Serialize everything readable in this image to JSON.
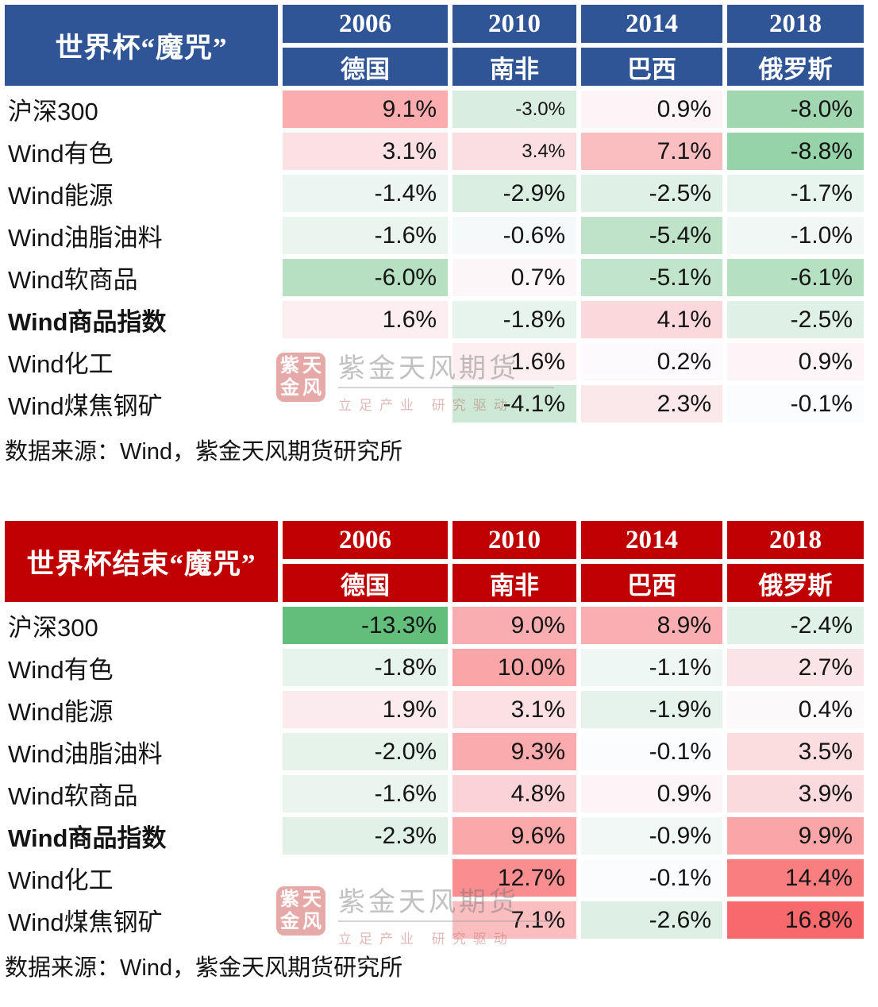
{
  "page": {
    "background": "#FFFFFF",
    "text_color": "#141414"
  },
  "color_scale": {
    "type": "3-color",
    "max_color": "#F8696B",
    "mid_color": "#FCFCFF",
    "min_color": "#63BE7B",
    "max_value": 16.8,
    "min_value": -13.3,
    "mid_value": 0
  },
  "watermark": {
    "seal_chars": [
      "紫",
      "天",
      "金",
      "风"
    ],
    "brand": "紫金天风期货",
    "slogan": "立足产业 研究驱动"
  },
  "chart_data": [
    {
      "type": "table",
      "title": "世界杯“魔咒”",
      "header_color": "#2F5597",
      "years": [
        "2006",
        "2010",
        "2014",
        "2018"
      ],
      "hosts": [
        "德国",
        "南非",
        "巴西",
        "俄罗斯"
      ],
      "rows": [
        {
          "label": "沪深300",
          "bold": false,
          "values": [
            "9.1%",
            "-3.0%",
            "0.9%",
            "-8.0%"
          ]
        },
        {
          "label": "Wind有色",
          "bold": false,
          "values": [
            "3.1%",
            "3.4%",
            "7.1%",
            "-8.8%"
          ]
        },
        {
          "label": "Wind能源",
          "bold": false,
          "values": [
            "-1.4%",
            "-2.9%",
            "-2.5%",
            "-1.7%"
          ]
        },
        {
          "label": "Wind油脂油料",
          "bold": false,
          "values": [
            "-1.6%",
            "-0.6%",
            "-5.4%",
            "-1.0%"
          ]
        },
        {
          "label": "Wind软商品",
          "bold": false,
          "values": [
            "-6.0%",
            "0.7%",
            "-5.1%",
            "-6.1%"
          ]
        },
        {
          "label": "Wind商品指数",
          "bold": true,
          "values": [
            "1.6%",
            "-1.8%",
            "4.1%",
            "-2.5%"
          ]
        },
        {
          "label": "Wind化工",
          "bold": false,
          "values": [
            "",
            "1.6%",
            "0.2%",
            "0.9%"
          ]
        },
        {
          "label": "Wind煤焦钢矿",
          "bold": false,
          "values": [
            "",
            "-4.1%",
            "2.3%",
            "-0.1%"
          ]
        }
      ],
      "small_cells": [
        [
          0,
          1
        ],
        [
          1,
          1
        ]
      ],
      "source": "数据来源：Wind，紫金天风期货研究所"
    },
    {
      "type": "table",
      "title": "世界杯结束“魔咒”",
      "header_color": "#C00000",
      "years": [
        "2006",
        "2010",
        "2014",
        "2018"
      ],
      "hosts": [
        "德国",
        "南非",
        "巴西",
        "俄罗斯"
      ],
      "rows": [
        {
          "label": "沪深300",
          "bold": false,
          "values": [
            "-13.3%",
            "9.0%",
            "8.9%",
            "-2.4%"
          ]
        },
        {
          "label": "Wind有色",
          "bold": false,
          "values": [
            "-1.8%",
            "10.0%",
            "-1.1%",
            "2.7%"
          ]
        },
        {
          "label": "Wind能源",
          "bold": false,
          "values": [
            "1.9%",
            "3.1%",
            "-1.9%",
            "0.4%"
          ]
        },
        {
          "label": "Wind油脂油料",
          "bold": false,
          "values": [
            "-2.0%",
            "9.3%",
            "-0.1%",
            "3.5%"
          ]
        },
        {
          "label": "Wind软商品",
          "bold": false,
          "values": [
            "-1.6%",
            "4.8%",
            "0.9%",
            "3.9%"
          ]
        },
        {
          "label": "Wind商品指数",
          "bold": true,
          "values": [
            "-2.3%",
            "9.6%",
            "-0.9%",
            "9.9%"
          ]
        },
        {
          "label": "Wind化工",
          "bold": false,
          "values": [
            "",
            "12.7%",
            "-0.1%",
            "14.4%"
          ]
        },
        {
          "label": "Wind煤焦钢矿",
          "bold": false,
          "values": [
            "",
            "7.1%",
            "-2.6%",
            "16.8%"
          ]
        }
      ],
      "small_cells": [],
      "source": "数据来源：Wind，紫金天风期货研究所"
    }
  ]
}
